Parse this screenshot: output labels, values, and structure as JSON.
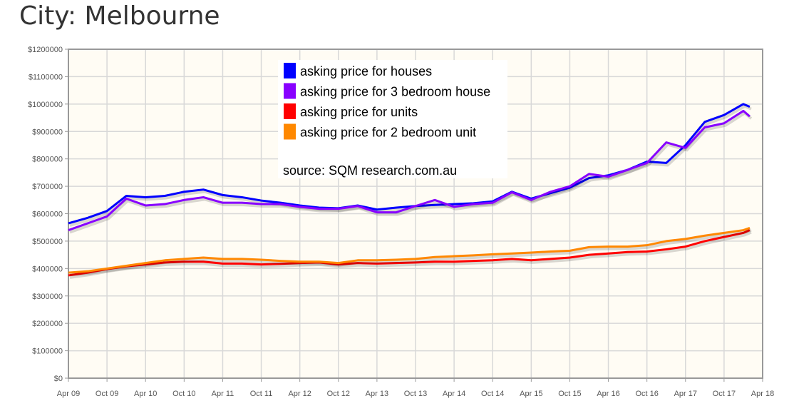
{
  "title": "City: Melbourne",
  "chart_data": {
    "type": "line",
    "title": "City: Melbourne",
    "xlabel": "",
    "ylabel": "",
    "ylim": [
      0,
      1200000
    ],
    "y_ticks": [
      "$0",
      "$100000",
      "$200000",
      "$300000",
      "$400000",
      "$500000",
      "$600000",
      "$700000",
      "$800000",
      "$900000",
      "$1000000",
      "$1100000",
      "$1200000"
    ],
    "x_ticks": [
      "Apr 09",
      "Oct 09",
      "Apr 10",
      "Oct 10",
      "Apr 11",
      "Oct 11",
      "Apr 12",
      "Oct 12",
      "Apr 13",
      "Oct 13",
      "Apr 14",
      "Oct 14",
      "Apr 15",
      "Oct 15",
      "Apr 16",
      "Oct 16",
      "Apr 17",
      "Oct 17",
      "Apr 18"
    ],
    "x_unit": "months since Apr 09",
    "x": [
      0,
      3,
      6,
      9,
      12,
      15,
      18,
      21,
      24,
      27,
      30,
      33,
      36,
      39,
      42,
      45,
      48,
      51,
      54,
      57,
      60,
      63,
      66,
      69,
      72,
      75,
      78,
      81,
      84,
      87,
      90,
      93,
      96,
      99,
      102,
      105,
      106
    ],
    "series": [
      {
        "name": "asking price for houses",
        "color": "#0000ff",
        "values": [
          565,
          585,
          610,
          665,
          660,
          665,
          680,
          688,
          668,
          660,
          648,
          640,
          630,
          622,
          620,
          630,
          615,
          622,
          628,
          632,
          635,
          638,
          645,
          680,
          655,
          675,
          695,
          730,
          740,
          760,
          790,
          785,
          850,
          935,
          960,
          1000,
          990
        ]
      },
      {
        "name": "asking price for 3 bedroom house",
        "color": "#8800ff",
        "values": [
          540,
          565,
          590,
          655,
          630,
          635,
          650,
          660,
          640,
          640,
          635,
          635,
          625,
          618,
          618,
          628,
          605,
          605,
          628,
          650,
          625,
          635,
          640,
          678,
          650,
          680,
          700,
          745,
          735,
          760,
          785,
          860,
          840,
          915,
          930,
          975,
          955
        ]
      },
      {
        "name": "asking price for units",
        "color": "#ff0000",
        "values": [
          375,
          385,
          398,
          408,
          415,
          422,
          425,
          425,
          418,
          418,
          415,
          417,
          420,
          422,
          415,
          420,
          418,
          420,
          422,
          425,
          425,
          428,
          430,
          435,
          430,
          435,
          440,
          450,
          455,
          460,
          462,
          470,
          480,
          500,
          515,
          530,
          540
        ]
      },
      {
        "name": "asking price for 2 bedroom unit",
        "color": "#ff8800",
        "values": [
          385,
          390,
          400,
          410,
          420,
          430,
          435,
          440,
          435,
          435,
          432,
          428,
          425,
          425,
          420,
          430,
          430,
          432,
          435,
          442,
          445,
          448,
          452,
          455,
          458,
          462,
          465,
          478,
          480,
          480,
          485,
          500,
          508,
          520,
          530,
          540,
          548
        ]
      }
    ],
    "value_unit": "thousands of dollars",
    "legend_placement": "top-center",
    "annotation": "source: SQM research.com.au",
    "grid": true
  }
}
